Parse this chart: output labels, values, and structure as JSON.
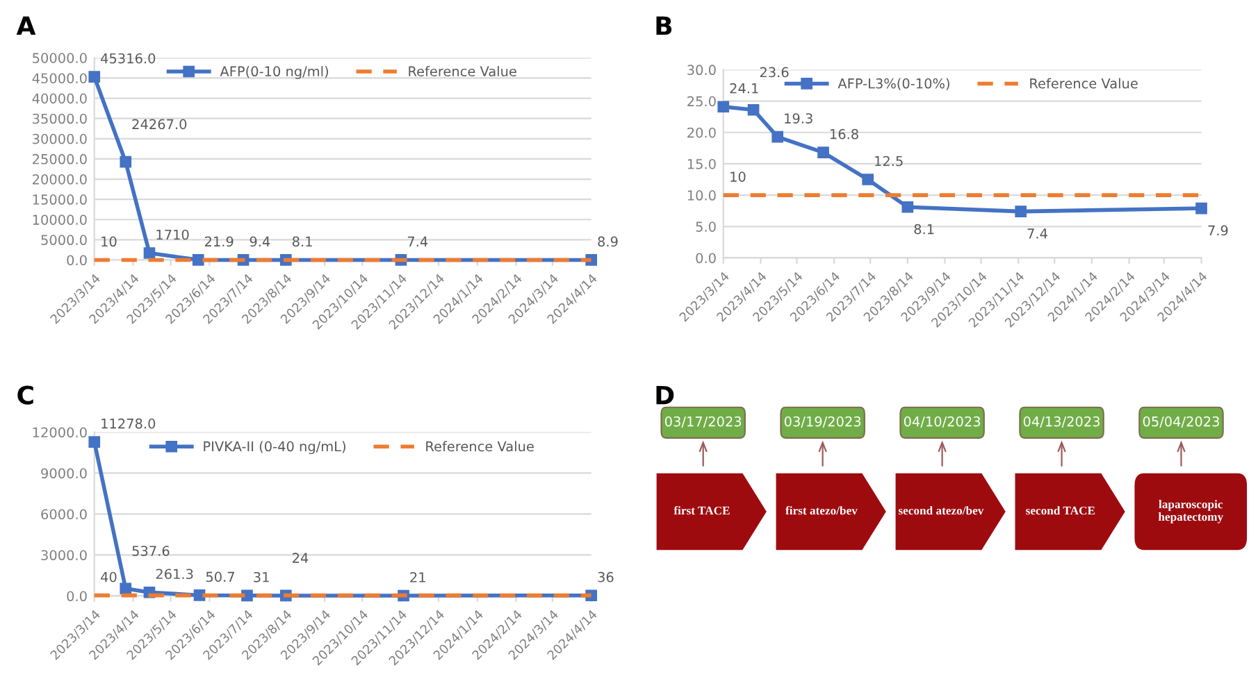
{
  "chart_data": [
    {
      "type": "line",
      "title": "A",
      "x": [
        "2023-03-14",
        "2023-04-08",
        "2023-04-27",
        "2023-06-05",
        "2023-07-11",
        "2023-08-14",
        "2023-11-14",
        "2024-04-14"
      ],
      "series": [
        {
          "name": "AFP(0-10 ng/ml)",
          "color": "#4472c4",
          "marker": "square",
          "line_style": "solid",
          "values": [
            45316,
            24267,
            1710,
            21.9,
            9.4,
            8.1,
            7.4,
            8.9
          ],
          "value_labels": [
            "45316.0",
            "24267.0",
            "1710",
            "21.9",
            "9.4",
            "8.1",
            "7.4",
            "8.9"
          ]
        },
        {
          "name": "Reference Value",
          "color": "#ed7d31",
          "marker": "none",
          "line_style": "dashed",
          "x": [
            "2023-03-14",
            "2024-04-14"
          ],
          "values": [
            10,
            10
          ],
          "value_labels": [
            "10",
            null
          ]
        }
      ],
      "xlim": [
        "2023-03-14",
        "2024-04-14"
      ],
      "xticks": [
        {
          "value": "2023-03-14",
          "label": "2023/3/14"
        },
        {
          "value": "2023-04-14",
          "label": "2023/4/14"
        },
        {
          "value": "2023-05-14",
          "label": "2023/5/14"
        },
        {
          "value": "2023-06-14",
          "label": "2023/6/14"
        },
        {
          "value": "2023-07-14",
          "label": "2023/7/14"
        },
        {
          "value": "2023-08-14",
          "label": "2023/8/14"
        },
        {
          "value": "2023-09-14",
          "label": "2023/9/14"
        },
        {
          "value": "2023-10-14",
          "label": "2023/10/14"
        },
        {
          "value": "2023-11-14",
          "label": "2023/11/14"
        },
        {
          "value": "2023-12-14",
          "label": "2023/12/14"
        },
        {
          "value": "2024-01-14",
          "label": "2024/1/14"
        },
        {
          "value": "2024-02-14",
          "label": "2024/2/14"
        },
        {
          "value": "2024-03-14",
          "label": "2024/3/14"
        },
        {
          "value": "2024-04-14",
          "label": "2024/4/14"
        }
      ],
      "ylim": [
        0,
        50000
      ],
      "yticks": [
        {
          "value": 0,
          "label": "0.0"
        },
        {
          "value": 5000,
          "label": "5000.0"
        },
        {
          "value": 10000,
          "label": "10000.0"
        },
        {
          "value": 15000,
          "label": "15000.0"
        },
        {
          "value": 20000,
          "label": "20000.0"
        },
        {
          "value": 25000,
          "label": "25000.0"
        },
        {
          "value": 30000,
          "label": "30000.0"
        },
        {
          "value": 35000,
          "label": "35000.0"
        },
        {
          "value": 40000,
          "label": "40000.0"
        },
        {
          "value": 45000,
          "label": "45000.0"
        },
        {
          "value": 50000,
          "label": "50000.0"
        }
      ],
      "grid": "y",
      "legend": "top"
    },
    {
      "type": "line",
      "title": "B",
      "x": [
        "2023-03-14",
        "2023-04-08",
        "2023-04-28",
        "2023-06-05",
        "2023-07-12",
        "2023-08-14",
        "2023-11-16",
        "2024-04-14"
      ],
      "series": [
        {
          "name": "AFP-L3%(0-10%)",
          "color": "#4472c4",
          "marker": "square",
          "line_style": "solid",
          "values": [
            24.1,
            23.6,
            19.3,
            16.8,
            12.5,
            8.1,
            7.4,
            7.9
          ],
          "value_labels": [
            "24.1",
            "23.6",
            "19.3",
            "16.8",
            "12.5",
            "8.1",
            "7.4",
            "7.9"
          ]
        },
        {
          "name": "Reference Value",
          "color": "#ed7d31",
          "marker": "none",
          "line_style": "dashed",
          "x": [
            "2023-03-14",
            "2024-04-14"
          ],
          "values": [
            10,
            10
          ],
          "value_labels": [
            "10",
            null
          ]
        }
      ],
      "xlim": [
        "2023-03-14",
        "2024-04-14"
      ],
      "xticks": [
        {
          "value": "2023-03-14",
          "label": "2023/3/14"
        },
        {
          "value": "2023-04-14",
          "label": "2023/4/14"
        },
        {
          "value": "2023-05-14",
          "label": "2023/5/14"
        },
        {
          "value": "2023-06-14",
          "label": "2023/6/14"
        },
        {
          "value": "2023-07-14",
          "label": "2023/7/14"
        },
        {
          "value": "2023-08-14",
          "label": "2023/8/14"
        },
        {
          "value": "2023-09-14",
          "label": "2023/9/14"
        },
        {
          "value": "2023-10-14",
          "label": "2023/10/14"
        },
        {
          "value": "2023-11-14",
          "label": "2023/11/14"
        },
        {
          "value": "2023-12-14",
          "label": "2023/12/14"
        },
        {
          "value": "2024-01-14",
          "label": "2024/1/14"
        },
        {
          "value": "2024-02-14",
          "label": "2024/2/14"
        },
        {
          "value": "2024-03-14",
          "label": "2024/3/14"
        },
        {
          "value": "2024-04-14",
          "label": "2024/4/14"
        }
      ],
      "ylim": [
        0,
        30
      ],
      "yticks": [
        {
          "value": 0,
          "label": "0.0"
        },
        {
          "value": 5,
          "label": "5.0"
        },
        {
          "value": 10,
          "label": "10.0"
        },
        {
          "value": 15,
          "label": "15.0"
        },
        {
          "value": 20,
          "label": "20.0"
        },
        {
          "value": 25,
          "label": "25.0"
        },
        {
          "value": 30,
          "label": "30.0"
        }
      ],
      "grid": "y",
      "legend": "top"
    },
    {
      "type": "line",
      "title": "C",
      "x": [
        "2023-03-14",
        "2023-04-08",
        "2023-04-27",
        "2023-06-06",
        "2023-07-14",
        "2023-08-14",
        "2023-11-16",
        "2024-04-14"
      ],
      "series": [
        {
          "name": "PIVKA-II (0-40 ng/mL)",
          "color": "#4472c4",
          "marker": "square",
          "line_style": "solid",
          "values": [
            11278,
            537.6,
            261.3,
            50.7,
            31,
            24,
            21,
            36
          ],
          "value_labels": [
            "11278.0",
            "537.6",
            "261.3",
            "50.7",
            "31",
            "24",
            "21",
            "36"
          ]
        },
        {
          "name": "Reference Value",
          "color": "#ed7d31",
          "marker": "none",
          "line_style": "dashed",
          "x": [
            "2023-03-14",
            "2024-04-14"
          ],
          "values": [
            40,
            40
          ],
          "value_labels": [
            "40",
            null
          ]
        }
      ],
      "xlim": [
        "2023-03-14",
        "2024-04-14"
      ],
      "xticks": [
        {
          "value": "2023-03-14",
          "label": "2023/3/14"
        },
        {
          "value": "2023-04-14",
          "label": "2023/4/14"
        },
        {
          "value": "2023-05-14",
          "label": "2023/5/14"
        },
        {
          "value": "2023-06-14",
          "label": "2023/6/14"
        },
        {
          "value": "2023-07-14",
          "label": "2023/7/14"
        },
        {
          "value": "2023-08-14",
          "label": "2023/8/14"
        },
        {
          "value": "2023-09-14",
          "label": "2023/9/14"
        },
        {
          "value": "2023-10-14",
          "label": "2023/10/14"
        },
        {
          "value": "2023-11-14",
          "label": "2023/11/14"
        },
        {
          "value": "2023-12-14",
          "label": "2023/12/14"
        },
        {
          "value": "2024-01-14",
          "label": "2024/1/14"
        },
        {
          "value": "2024-02-14",
          "label": "2024/2/14"
        },
        {
          "value": "2024-03-14",
          "label": "2024/3/14"
        },
        {
          "value": "2024-04-14",
          "label": "2024/4/14"
        }
      ],
      "ylim": [
        0,
        12000
      ],
      "yticks": [
        {
          "value": 0,
          "label": "0.0"
        },
        {
          "value": 3000,
          "label": "3000.0"
        },
        {
          "value": 6000,
          "label": "6000.0"
        },
        {
          "value": 9000,
          "label": "9000.0"
        },
        {
          "value": 12000,
          "label": "12000.0"
        }
      ],
      "grid": "y",
      "legend": "top"
    },
    {
      "type": "other",
      "title": "D",
      "categories": [
        "first TACE",
        "first atezo/bev",
        "second atezo/bev",
        "second TACE",
        "laparoscopic\nhepatectomy"
      ],
      "annotations": [
        "03/17/2023",
        "03/19/2023",
        "04/10/2023",
        "04/13/2023",
        "05/04/2023"
      ]
    }
  ]
}
